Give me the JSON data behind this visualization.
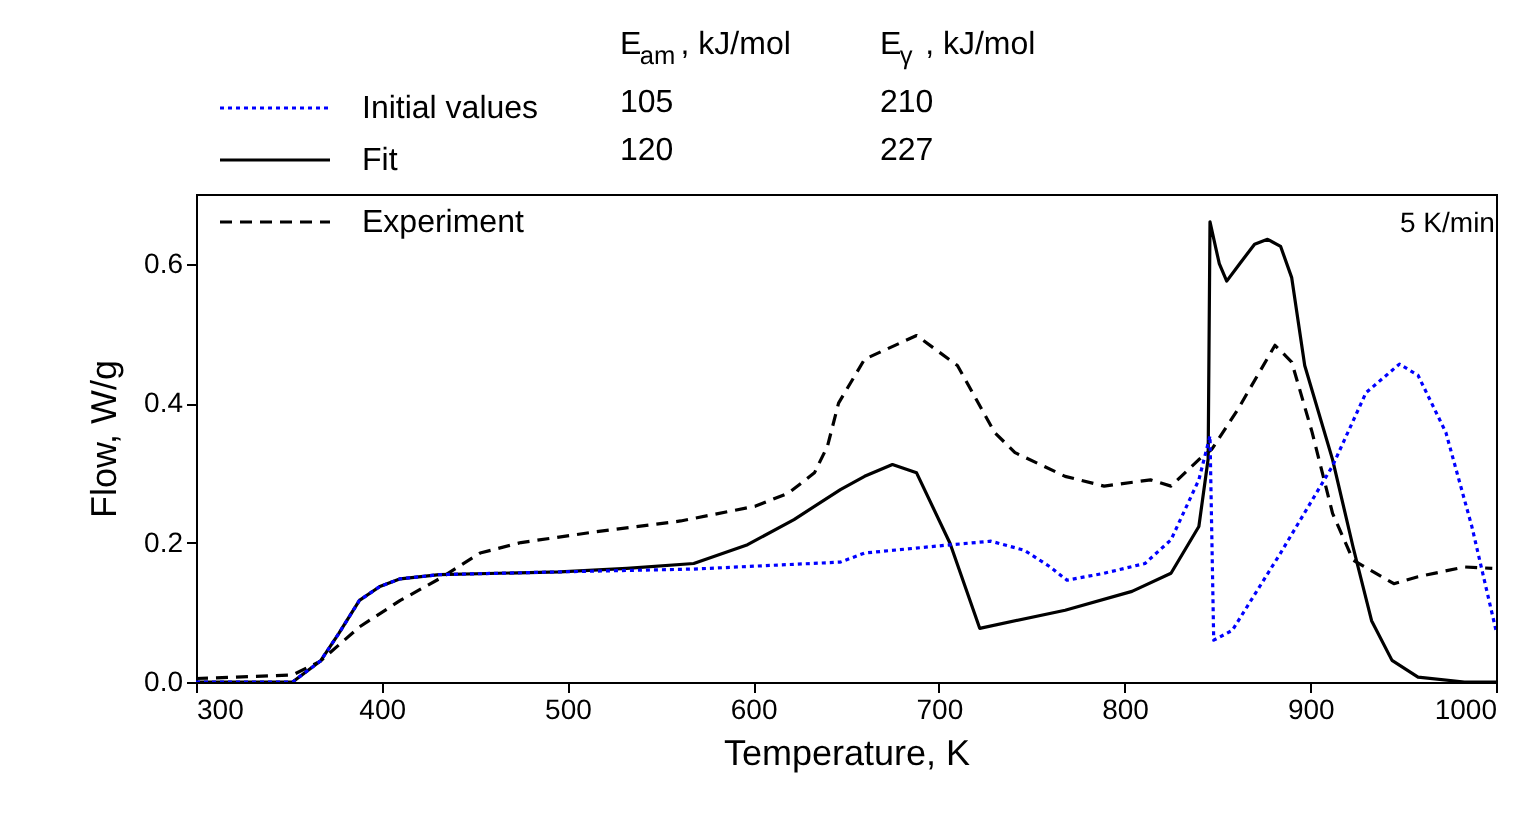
{
  "chart_data": {
    "type": "line",
    "xlabel": "Temperature, K",
    "ylabel": "Flow, W/g",
    "xlim": [
      300,
      1000
    ],
    "xticks": [
      300,
      400,
      500,
      600,
      700,
      800,
      900,
      {
        "value": 1000,
        "label": "1000"
      }
    ],
    "ylim": [
      0,
      0.7
    ],
    "yticks": [
      {
        "value": 0,
        "label": "0.0"
      },
      {
        "value": 0.2,
        "label": "0.2"
      },
      {
        "value": 0.4,
        "label": "0.4"
      },
      {
        "value": 0.6,
        "label": "0.6"
      }
    ],
    "grid": false,
    "legend": "top left",
    "annotations": [
      "E$_{am}$, kJ/mol",
      "E$_{γ}$, kJ/mol",
      "105",
      "210",
      "120",
      "227",
      "5 K/min"
    ],
    "series": [
      {
        "name": "Initial values",
        "color": "#0000ff",
        "line_style": "dotted",
        "x": [
          300,
          352,
          367,
          377,
          388,
          399,
          410,
          431,
          496,
          568,
          647,
          660,
          703,
          728,
          746,
          760,
          769,
          789,
          811,
          825,
          840,
          846,
          848,
          858,
          884,
          912,
          930,
          948,
          958,
          973,
          987,
          1000
        ],
        "values": [
          0,
          0,
          0.03,
          0.07,
          0.117,
          0.137,
          0.148,
          0.154,
          0.158,
          0.162,
          0.172,
          0.185,
          0.196,
          0.202,
          0.189,
          0.165,
          0.146,
          0.156,
          0.17,
          0.204,
          0.29,
          0.353,
          0.06,
          0.074,
          0.185,
          0.31,
          0.415,
          0.456,
          0.44,
          0.358,
          0.223,
          0.074
        ]
      },
      {
        "name": "Fit",
        "color": "#000000",
        "line_style": "solid",
        "x": [
          300,
          352,
          367,
          377,
          388,
          399,
          410,
          431,
          496,
          532,
          568,
          597,
          622,
          647,
          660,
          675,
          688,
          706,
          722,
          768,
          804,
          825,
          840,
          845,
          846,
          851,
          855,
          862,
          870,
          877,
          884,
          890,
          897,
          912,
          923,
          933,
          944,
          958,
          983,
          1000
        ],
        "values": [
          0,
          0,
          0.03,
          0.07,
          0.117,
          0.137,
          0.148,
          0.154,
          0.158,
          0.163,
          0.17,
          0.197,
          0.233,
          0.276,
          0.295,
          0.312,
          0.3,
          0.199,
          0.077,
          0.103,
          0.13,
          0.156,
          0.223,
          0.32,
          0.66,
          0.6,
          0.575,
          0.6,
          0.628,
          0.635,
          0.625,
          0.58,
          0.454,
          0.319,
          0.194,
          0.088,
          0.031,
          0.007,
          0,
          0
        ]
      },
      {
        "name": "Experiment",
        "color": "#000000",
        "line_style": "dashed",
        "x": [
          300,
          352,
          367,
          388,
          410,
          431,
          453,
          475,
          514,
          561,
          601,
          619,
          633,
          640,
          646,
          660,
          688,
          710,
          730,
          741,
          768,
          789,
          814,
          825,
          840,
          847,
          861,
          881,
          890,
          901,
          912,
          923,
          945,
          958,
          983,
          998
        ],
        "values": [
          0.005,
          0.01,
          0.03,
          0.079,
          0.117,
          0.148,
          0.185,
          0.2,
          0.215,
          0.231,
          0.252,
          0.271,
          0.3,
          0.338,
          0.4,
          0.463,
          0.497,
          0.454,
          0.358,
          0.329,
          0.295,
          0.281,
          0.29,
          0.281,
          0.319,
          0.334,
          0.391,
          0.483,
          0.459,
          0.358,
          0.242,
          0.175,
          0.141,
          0.151,
          0.165,
          0.163
        ]
      }
    ]
  }
}
